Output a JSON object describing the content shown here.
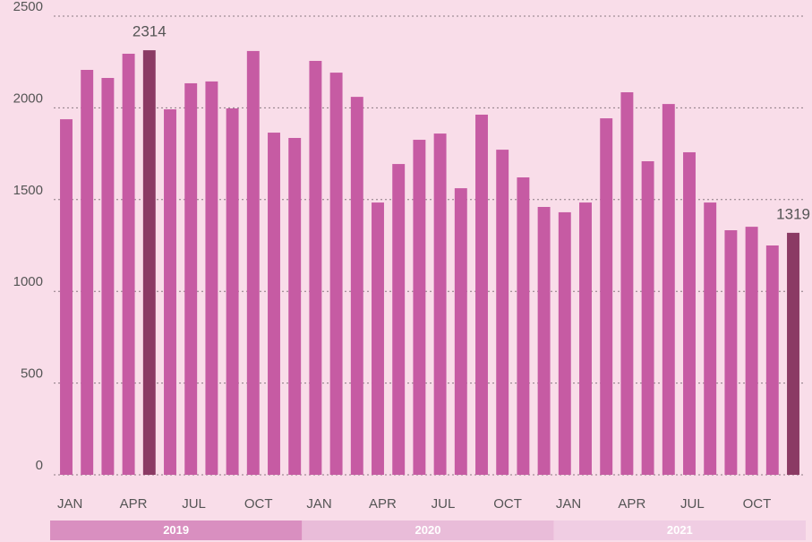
{
  "chart_data": {
    "type": "bar",
    "categories": [
      "JAN",
      null,
      null,
      "APR",
      null,
      null,
      "JUL",
      null,
      null,
      "OCT",
      null,
      null,
      "JAN",
      null,
      null,
      "APR",
      null,
      null,
      "JUL",
      null,
      null,
      "OCT",
      null,
      null,
      "JAN",
      null,
      null,
      "APR",
      null,
      null,
      "JUL",
      null,
      null,
      "OCT",
      null,
      null
    ],
    "values": [
      1938,
      2207,
      2163,
      2295,
      2314,
      1992,
      2134,
      2144,
      1997,
      2310,
      1865,
      1836,
      2256,
      2192,
      2060,
      1484,
      1694,
      1826,
      1860,
      1562,
      1963,
      1772,
      1621,
      1460,
      1431,
      1484,
      1943,
      2085,
      1709,
      2021,
      1758,
      1484,
      1333,
      1352,
      1250,
      1319
    ],
    "value_labels": [
      null,
      null,
      null,
      null,
      "2314",
      null,
      null,
      null,
      null,
      null,
      null,
      null,
      null,
      null,
      null,
      null,
      null,
      null,
      null,
      null,
      null,
      null,
      null,
      null,
      null,
      null,
      null,
      null,
      null,
      null,
      null,
      null,
      null,
      null,
      null,
      "1319"
    ],
    "colors": [
      "#c65ba3",
      "#c65ba3",
      "#c65ba3",
      "#c65ba3",
      "#8b3a64",
      "#c65ba3",
      "#c65ba3",
      "#c65ba3",
      "#c65ba3",
      "#c65ba3",
      "#c65ba3",
      "#c65ba3",
      "#c65ba3",
      "#c65ba3",
      "#c65ba3",
      "#c65ba3",
      "#c65ba3",
      "#c65ba3",
      "#c65ba3",
      "#c65ba3",
      "#c65ba3",
      "#c65ba3",
      "#c65ba3",
      "#c65ba3",
      "#c65ba3",
      "#c65ba3",
      "#c65ba3",
      "#c65ba3",
      "#c65ba3",
      "#c65ba3",
      "#c65ba3",
      "#c65ba3",
      "#c65ba3",
      "#c65ba3",
      "#c65ba3",
      "#8b3a64"
    ],
    "groups": [
      "2019",
      "2020",
      "2021"
    ],
    "group_colors": [
      "#d98fc0",
      "#e9bcd9",
      "#f0cde3"
    ],
    "ylim": [
      0,
      2500
    ],
    "yticks": [
      0,
      500,
      1000,
      1500,
      2000,
      2500
    ],
    "grid": true
  }
}
